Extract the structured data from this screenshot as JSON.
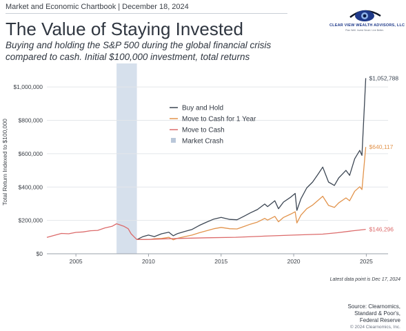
{
  "header": {
    "topline": "Market and Economic Chartbook | December 18, 2024",
    "title": "The Value of Staying Invested",
    "subtitle": "Buying and holding the S&P 500 during the global financial crisis compared to cash. Initial $100,000 investment, total returns"
  },
  "logo": {
    "name": "CLEAR VIEW WEALTH ADVISORS, LLC",
    "tagline": "Plan Well. Invest Smart. Live Better.",
    "colors": {
      "eye": "#1f3a8a",
      "swoosh": "#111827"
    }
  },
  "chart_data": {
    "type": "line",
    "ylabel": "Total Return Indexed to $100,000",
    "xlabel": "",
    "xlim": [
      2003.0,
      2026.5
    ],
    "ylim": [
      0,
      1100000
    ],
    "x_ticks": [
      2005,
      2010,
      2015,
      2020,
      2025
    ],
    "x_tick_labels": [
      "2005",
      "2010",
      "2015",
      "2020",
      "2025"
    ],
    "y_ticks": [
      0,
      200000,
      400000,
      600000,
      800000,
      1000000
    ],
    "y_tick_labels": [
      "$0",
      "$200,000",
      "$400,000",
      "$600,000",
      "$800,000",
      "$1,000,000"
    ],
    "grid": "horizontal",
    "legend_position": "upper-left-inside",
    "shaded_region": {
      "label": "Market Crash",
      "x_start": 2007.8,
      "x_end": 2009.2,
      "color": "#d6e0ec"
    },
    "series": [
      {
        "name": "Buy and Hold",
        "color": "#3c4653",
        "end_label": "$1,052,788",
        "points": [
          [
            2009.2,
            85000
          ],
          [
            2009.6,
            102000
          ],
          [
            2010.0,
            112000
          ],
          [
            2010.4,
            103000
          ],
          [
            2010.9,
            120000
          ],
          [
            2011.4,
            129000
          ],
          [
            2011.7,
            108000
          ],
          [
            2012.0,
            121000
          ],
          [
            2012.5,
            134000
          ],
          [
            2013.0,
            146000
          ],
          [
            2013.5,
            170000
          ],
          [
            2014.0,
            190000
          ],
          [
            2014.5,
            208000
          ],
          [
            2015.0,
            218000
          ],
          [
            2015.6,
            206000
          ],
          [
            2016.1,
            204000
          ],
          [
            2016.6,
            226000
          ],
          [
            2017.0,
            245000
          ],
          [
            2017.5,
            265000
          ],
          [
            2018.0,
            298000
          ],
          [
            2018.2,
            283000
          ],
          [
            2018.7,
            318000
          ],
          [
            2018.95,
            270000
          ],
          [
            2019.3,
            310000
          ],
          [
            2019.8,
            340000
          ],
          [
            2020.1,
            362000
          ],
          [
            2020.22,
            260000
          ],
          [
            2020.5,
            330000
          ],
          [
            2020.9,
            395000
          ],
          [
            2021.3,
            430000
          ],
          [
            2021.7,
            480000
          ],
          [
            2022.0,
            520000
          ],
          [
            2022.4,
            430000
          ],
          [
            2022.8,
            410000
          ],
          [
            2023.1,
            455000
          ],
          [
            2023.6,
            500000
          ],
          [
            2023.85,
            470000
          ],
          [
            2024.2,
            570000
          ],
          [
            2024.55,
            620000
          ],
          [
            2024.7,
            590000
          ],
          [
            2024.96,
            1052788
          ]
        ]
      },
      {
        "name": "Move to Cash for 1 Year",
        "color": "#e2934b",
        "end_label": "$640,117",
        "points": [
          [
            2009.2,
            85000
          ],
          [
            2010.2,
            87000
          ],
          [
            2010.4,
            90000
          ],
          [
            2010.9,
            92000
          ],
          [
            2011.4,
            99000
          ],
          [
            2011.7,
            84000
          ],
          [
            2012.0,
            93000
          ],
          [
            2012.5,
            103000
          ],
          [
            2013.0,
            112000
          ],
          [
            2013.5,
            126000
          ],
          [
            2014.0,
            138000
          ],
          [
            2014.5,
            150000
          ],
          [
            2015.0,
            158000
          ],
          [
            2015.6,
            150000
          ],
          [
            2016.1,
            149000
          ],
          [
            2016.6,
            164000
          ],
          [
            2017.0,
            177000
          ],
          [
            2017.5,
            190000
          ],
          [
            2018.0,
            212000
          ],
          [
            2018.2,
            202000
          ],
          [
            2018.7,
            224000
          ],
          [
            2018.95,
            192000
          ],
          [
            2019.3,
            218000
          ],
          [
            2019.8,
            238000
          ],
          [
            2020.1,
            252000
          ],
          [
            2020.22,
            185000
          ],
          [
            2020.5,
            232000
          ],
          [
            2020.9,
            270000
          ],
          [
            2021.3,
            292000
          ],
          [
            2021.7,
            322000
          ],
          [
            2022.0,
            345000
          ],
          [
            2022.4,
            290000
          ],
          [
            2022.8,
            278000
          ],
          [
            2023.1,
            305000
          ],
          [
            2023.6,
            335000
          ],
          [
            2023.85,
            318000
          ],
          [
            2024.2,
            375000
          ],
          [
            2024.55,
            402000
          ],
          [
            2024.7,
            385000
          ],
          [
            2024.96,
            640117
          ]
        ]
      },
      {
        "name": "Move to Cash",
        "color": "#dc6a6a",
        "end_label": "$146,296",
        "points": [
          [
            2003.0,
            98000
          ],
          [
            2003.5,
            110000
          ],
          [
            2004.0,
            122000
          ],
          [
            2004.5,
            120000
          ],
          [
            2005.0,
            128000
          ],
          [
            2005.5,
            131000
          ],
          [
            2006.0,
            138000
          ],
          [
            2006.5,
            140000
          ],
          [
            2007.0,
            155000
          ],
          [
            2007.5,
            165000
          ],
          [
            2007.8,
            180000
          ],
          [
            2008.0,
            174000
          ],
          [
            2008.3,
            165000
          ],
          [
            2008.6,
            150000
          ],
          [
            2008.8,
            120000
          ],
          [
            2009.0,
            102000
          ],
          [
            2009.2,
            85000
          ],
          [
            2010.0,
            86000
          ],
          [
            2012.0,
            92000
          ],
          [
            2014.0,
            96000
          ],
          [
            2016.0,
            99000
          ],
          [
            2018.0,
            106000
          ],
          [
            2020.0,
            112000
          ],
          [
            2022.0,
            118000
          ],
          [
            2023.0,
            126000
          ],
          [
            2024.0,
            137000
          ],
          [
            2024.96,
            146296
          ]
        ]
      }
    ],
    "legend": [
      "Buy and Hold",
      "Move to Cash for 1 Year",
      "Move to Cash",
      "Market Crash"
    ]
  },
  "footer": {
    "note": "Latest data point is Dec 17, 2024",
    "source_line1": "Source: Clearnomics,",
    "source_line2": "Standard & Poor's,",
    "source_line3": "Federal Reserve",
    "copyright": "© 2024 Clearnomics, Inc."
  }
}
